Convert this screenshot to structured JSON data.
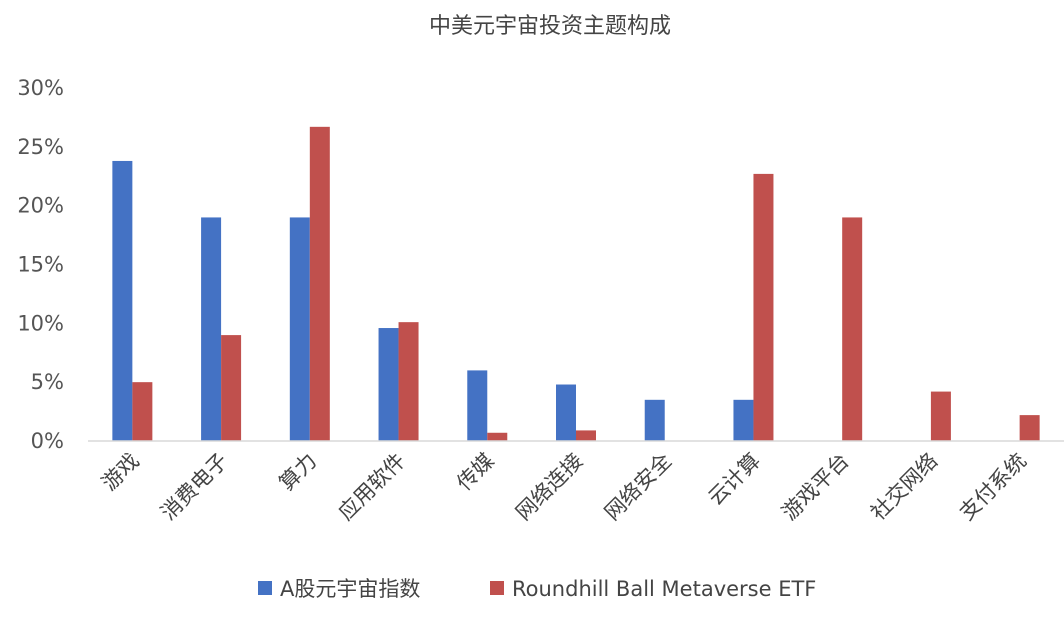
{
  "chart_data": {
    "type": "bar",
    "title": "中美元宇宙投资主题构成",
    "categories": [
      "游戏",
      "消费电子",
      "算力",
      "应用软件",
      "传媒",
      "网络连接",
      "网络安全",
      "云计算",
      "游戏平台",
      "社交网络",
      "支付系统"
    ],
    "series": [
      {
        "name": "A股元宇宙指数",
        "color": "#4472c4",
        "values": [
          23.8,
          19.0,
          19.0,
          9.6,
          6.0,
          4.8,
          3.5,
          3.5,
          null,
          null,
          null
        ]
      },
      {
        "name": "Roundhill Ball Metaverse ETF",
        "color": "#c0504d",
        "values": [
          5.0,
          9.0,
          26.7,
          10.1,
          0.7,
          0.9,
          null,
          22.7,
          19.0,
          4.2,
          2.2
        ]
      }
    ],
    "ylim": [
      0,
      30
    ],
    "yticks": [
      0,
      5,
      10,
      15,
      20,
      25,
      30
    ],
    "ytick_labels": [
      "0%",
      "5%",
      "10%",
      "15%",
      "20%",
      "25%",
      "30%"
    ],
    "grid": false,
    "legend": "bottom"
  }
}
